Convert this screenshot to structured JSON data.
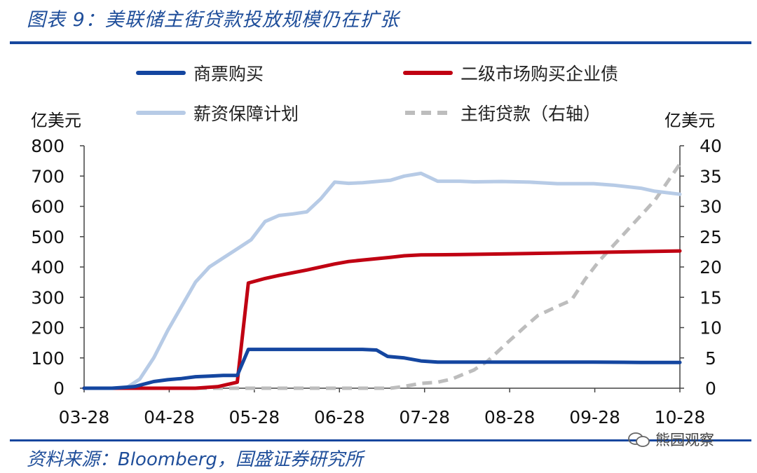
{
  "header": {
    "title": "图表 9：美联储主街贷款投放规模仍在扩张"
  },
  "footer": {
    "source": "资料来源：Bloomberg，国盛证券研究所",
    "watermark": "熊园观察"
  },
  "chart_data": {
    "type": "line",
    "title": "图表 9：美联储主街贷款投放规模仍在扩张",
    "ylabel": "亿美元",
    "y2label": "亿美元",
    "ylim": [
      0,
      800
    ],
    "y2lim": [
      0,
      40
    ],
    "yticks": [
      0,
      100,
      200,
      300,
      400,
      500,
      600,
      700,
      800
    ],
    "y2ticks": [
      0,
      5,
      10,
      15,
      20,
      25,
      30,
      35,
      40
    ],
    "xticks": [
      "03-28",
      "04-28",
      "05-28",
      "06-28",
      "07-28",
      "08-28",
      "09-28",
      "10-28"
    ],
    "xrange": [
      0,
      214
    ],
    "legend_placement": "top",
    "grid": false,
    "series": [
      {
        "name": "商票购买",
        "axis": "left",
        "color": "#1446a0",
        "points": [
          [
            0,
            0
          ],
          [
            10,
            0
          ],
          [
            18,
            5
          ],
          [
            25,
            22
          ],
          [
            30,
            28
          ],
          [
            35,
            32
          ],
          [
            40,
            38
          ],
          [
            45,
            40
          ],
          [
            50,
            42
          ],
          [
            55,
            42
          ],
          [
            59,
            128
          ],
          [
            70,
            128
          ],
          [
            80,
            128
          ],
          [
            90,
            128
          ],
          [
            100,
            128
          ],
          [
            105,
            126
          ],
          [
            109,
            105
          ],
          [
            115,
            100
          ],
          [
            121,
            90
          ],
          [
            127,
            86
          ],
          [
            140,
            86
          ],
          [
            152,
            86
          ],
          [
            170,
            86
          ],
          [
            183,
            86
          ],
          [
            200,
            85
          ],
          [
            214,
            85
          ]
        ]
      },
      {
        "name": "二级市场购买企业债",
        "axis": "left",
        "color": "#c00012",
        "points": [
          [
            0,
            0
          ],
          [
            20,
            0
          ],
          [
            40,
            0
          ],
          [
            48,
            5
          ],
          [
            55,
            20
          ],
          [
            59,
            347
          ],
          [
            65,
            362
          ],
          [
            70,
            372
          ],
          [
            80,
            390
          ],
          [
            90,
            410
          ],
          [
            95,
            418
          ],
          [
            100,
            423
          ],
          [
            110,
            432
          ],
          [
            115,
            437
          ],
          [
            121,
            440
          ],
          [
            135,
            441
          ],
          [
            150,
            443
          ],
          [
            170,
            446
          ],
          [
            190,
            449
          ],
          [
            214,
            453
          ]
        ]
      },
      {
        "name": "薪资保障计划",
        "axis": "left",
        "color": "#b7cbe6",
        "points": [
          [
            0,
            0
          ],
          [
            15,
            0
          ],
          [
            20,
            30
          ],
          [
            25,
            100
          ],
          [
            30,
            190
          ],
          [
            35,
            270
          ],
          [
            40,
            350
          ],
          [
            45,
            400
          ],
          [
            50,
            430
          ],
          [
            55,
            460
          ],
          [
            60,
            490
          ],
          [
            65,
            550
          ],
          [
            70,
            570
          ],
          [
            75,
            575
          ],
          [
            80,
            582
          ],
          [
            85,
            625
          ],
          [
            90,
            680
          ],
          [
            95,
            676
          ],
          [
            100,
            678
          ],
          [
            105,
            682
          ],
          [
            110,
            686
          ],
          [
            115,
            700
          ],
          [
            121,
            709
          ],
          [
            127,
            683
          ],
          [
            135,
            683
          ],
          [
            140,
            681
          ],
          [
            150,
            682
          ],
          [
            160,
            680
          ],
          [
            170,
            675
          ],
          [
            183,
            675
          ],
          [
            190,
            670
          ],
          [
            200,
            660
          ],
          [
            205,
            650
          ],
          [
            214,
            640
          ]
        ]
      },
      {
        "name": "主街贷款（右轴）",
        "axis": "right",
        "color": "#bdbdbd",
        "dashed": true,
        "points": [
          [
            0,
            0
          ],
          [
            40,
            0
          ],
          [
            80,
            0
          ],
          [
            110,
            0
          ],
          [
            115,
            0.3
          ],
          [
            121,
            0.8
          ],
          [
            127,
            1
          ],
          [
            132,
            1.5
          ],
          [
            140,
            3
          ],
          [
            145,
            4.5
          ],
          [
            152,
            7.5
          ],
          [
            158,
            10
          ],
          [
            163,
            12
          ],
          [
            170,
            13.5
          ],
          [
            175,
            14.5
          ],
          [
            180,
            18
          ],
          [
            185,
            21
          ],
          [
            195,
            26
          ],
          [
            205,
            31
          ],
          [
            214,
            37
          ]
        ]
      }
    ]
  }
}
